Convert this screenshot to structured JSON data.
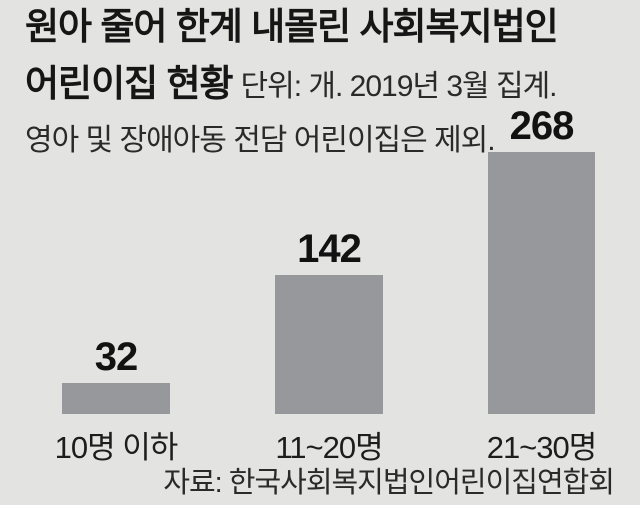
{
  "colors": {
    "background": "#e3e3e1",
    "bar": "#97989b",
    "text": "#1a1a1a"
  },
  "header": {
    "title_line1": "원아 줄어 한계 내몰린 사회복지법인",
    "title_line2_bold": "어린이집 현황",
    "unit_note": "단위: 개. 2019년 3월 집계.",
    "exclusion_note": "영아 및 장애아동 전담 어린이집은 제외."
  },
  "chart_data": {
    "type": "bar",
    "title": "원아 줄어 한계 내몰린 사회복지법인 어린이집 현황",
    "subtitle": "단위: 개. 2019년 3월 집계. 영아 및 장애아동 전담 어린이집은 제외.",
    "categories": [
      "10명 이하",
      "11~20명",
      "21~30명"
    ],
    "values": [
      32,
      142,
      268
    ],
    "unit": "개",
    "ylim": [
      0,
      268
    ],
    "grid": false,
    "legend": false,
    "value_labels_shown": true,
    "bar_color": "#97989b"
  },
  "source": "자료: 한국사회복지법인어린이집연합회"
}
